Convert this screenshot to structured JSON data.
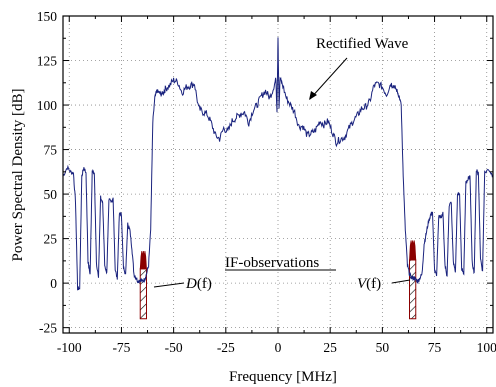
{
  "chart_data": {
    "type": "line",
    "xlabel": "Frequency [MHz]",
    "ylabel": "Power Spectral Density [dB]",
    "xlim": [
      -103,
      103
    ],
    "ylim": [
      -28,
      150
    ],
    "xticks": [
      -100,
      -75,
      -50,
      -25,
      0,
      25,
      50,
      75,
      100
    ],
    "yticks": [
      -25,
      0,
      25,
      50,
      75,
      100,
      125,
      150
    ],
    "grid": true,
    "grid_style": "dotted",
    "line_color": "#1a237e",
    "fill_color": "#8b0000",
    "series": [
      {
        "x": [
          -103,
          -101,
          -99,
          -98,
          -97,
          -96,
          -95,
          -94,
          -93,
          -92,
          -91,
          -90,
          -89,
          -88,
          -87,
          -86,
          -85,
          -84,
          -83,
          -82,
          -81,
          -80,
          -79,
          -78,
          -77,
          -76,
          -75,
          -74,
          -73,
          -72,
          -71,
          -70,
          -69,
          -68,
          -67,
          -66,
          -65,
          -64,
          -63,
          -62,
          -61,
          -60,
          -59,
          -58,
          -57,
          -56,
          -55,
          -54,
          -52,
          -50,
          -48,
          -46,
          -44,
          -42,
          -40,
          -38,
          -36,
          -34,
          -32,
          -30,
          -28,
          -26,
          -24,
          -22,
          -20,
          -18,
          -16,
          -14,
          -12,
          -10,
          -8,
          -6,
          -4,
          -2,
          -1,
          -0.5,
          0,
          0.5,
          1,
          2,
          4,
          6,
          8,
          10,
          12,
          14,
          16,
          18,
          20,
          22,
          24,
          26,
          28,
          30,
          32,
          34,
          36,
          38,
          40,
          42,
          44,
          46,
          48,
          50,
          52,
          54,
          55,
          56,
          57,
          58,
          59,
          60,
          61,
          62,
          63,
          64,
          65,
          66,
          67,
          68,
          69,
          70,
          71,
          72,
          73,
          74,
          75,
          76,
          77,
          78,
          79,
          80,
          81,
          82,
          83,
          84,
          85,
          86,
          87,
          88,
          89,
          90,
          91,
          92,
          93,
          94,
          95,
          96,
          97,
          98,
          99,
          101,
          103
        ],
        "y": [
          60,
          65,
          62,
          62,
          45,
          -3,
          -3,
          60,
          65,
          62,
          12,
          5,
          63,
          62,
          12,
          3,
          48,
          45,
          10,
          6,
          47,
          45,
          48,
          8,
          2,
          40,
          38,
          8,
          5,
          33,
          30,
          20,
          5,
          3,
          1,
          2,
          1,
          2,
          5,
          10,
          30,
          90,
          104,
          108,
          107,
          106,
          107,
          109,
          111,
          114,
          113,
          107,
          110,
          111,
          112,
          98,
          96,
          95,
          90,
          83,
          81,
          87,
          85,
          91,
          93,
          95,
          96,
          90,
          97,
          100,
          105,
          108,
          104,
          110,
          115,
          96,
          138,
          99,
          115,
          112,
          104,
          100,
          96,
          88,
          88,
          83,
          84,
          86,
          91,
          89,
          91,
          85,
          79,
          81,
          82,
          87,
          91,
          94,
          98,
          99,
          102,
          111,
          112,
          110,
          106,
          112,
          111,
          110,
          108,
          105,
          100,
          60,
          30,
          10,
          5,
          3,
          3,
          2,
          1,
          3,
          5,
          22,
          28,
          34,
          38,
          40,
          7,
          4,
          38,
          36,
          40,
          10,
          4,
          44,
          45,
          12,
          6,
          50,
          50,
          8,
          5,
          57,
          58,
          60,
          12,
          6,
          63,
          62,
          14,
          7,
          62,
          64,
          60
        ]
      }
    ],
    "annotations": {
      "rectified": "Rectified Wave",
      "if_obs": "IF-observations",
      "d_label": "D",
      "d_paren": "(f)",
      "v_label": "V",
      "v_paren": "(f)"
    }
  }
}
